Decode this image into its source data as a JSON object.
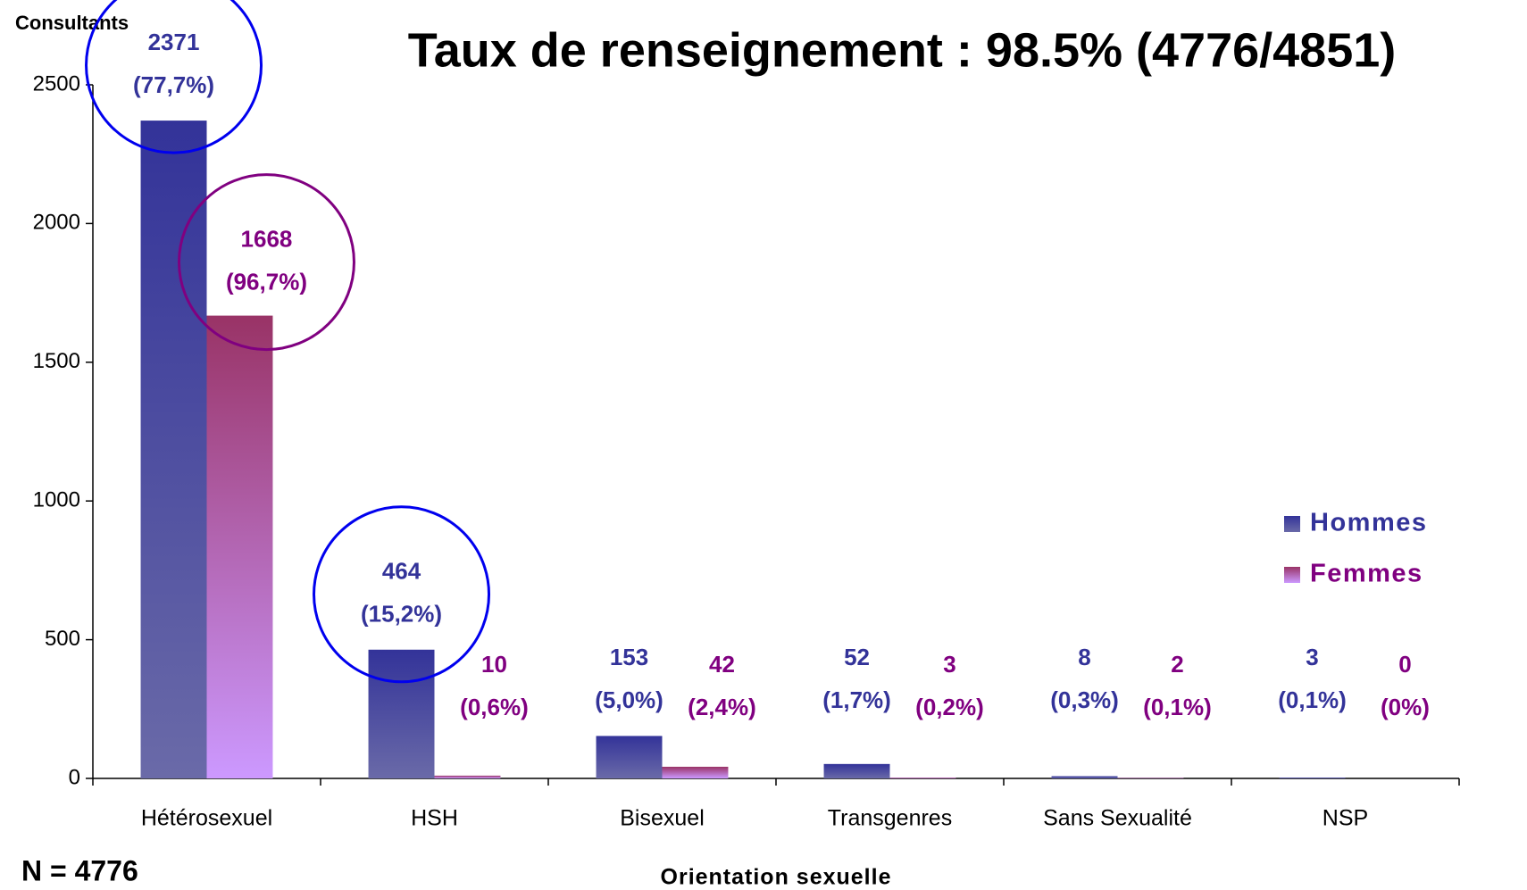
{
  "chart_data": {
    "type": "bar",
    "title": "Taux de renseignement : 98.5% (4776/4851)",
    "y_label": "Consultants",
    "x_label": "Orientation sexuelle",
    "note": "N = 4776",
    "categories": [
      "Hétérosexuel",
      "HSH",
      "Bisexuel",
      "Transgenres",
      "Sans Sexualité",
      "NSP"
    ],
    "series": [
      {
        "name": "Hommes",
        "color": "#333399",
        "label_color": "#333399",
        "gradient_end": "#6a6aa8",
        "values": [
          2371,
          464,
          153,
          52,
          8,
          3
        ],
        "percent_labels": [
          "(77,7%)",
          "(15,2%)",
          "(5,0%)",
          "(1,7%)",
          "(0,3%)",
          "(0,1%)"
        ]
      },
      {
        "name": "Femmes",
        "color": "#993366",
        "label_color": "#800080",
        "gradient_end": "#cc99ff",
        "values": [
          1668,
          10,
          42,
          3,
          2,
          0
        ],
        "percent_labels": [
          "(96,7%)",
          "(0,6%)",
          "(2,4%)",
          "(0,2%)",
          "(0,1%)",
          "(0%)"
        ]
      }
    ],
    "ylim": [
      0,
      2500
    ],
    "yticks": [
      0,
      500,
      1000,
      1500,
      2000,
      2500
    ],
    "legend": "right"
  }
}
